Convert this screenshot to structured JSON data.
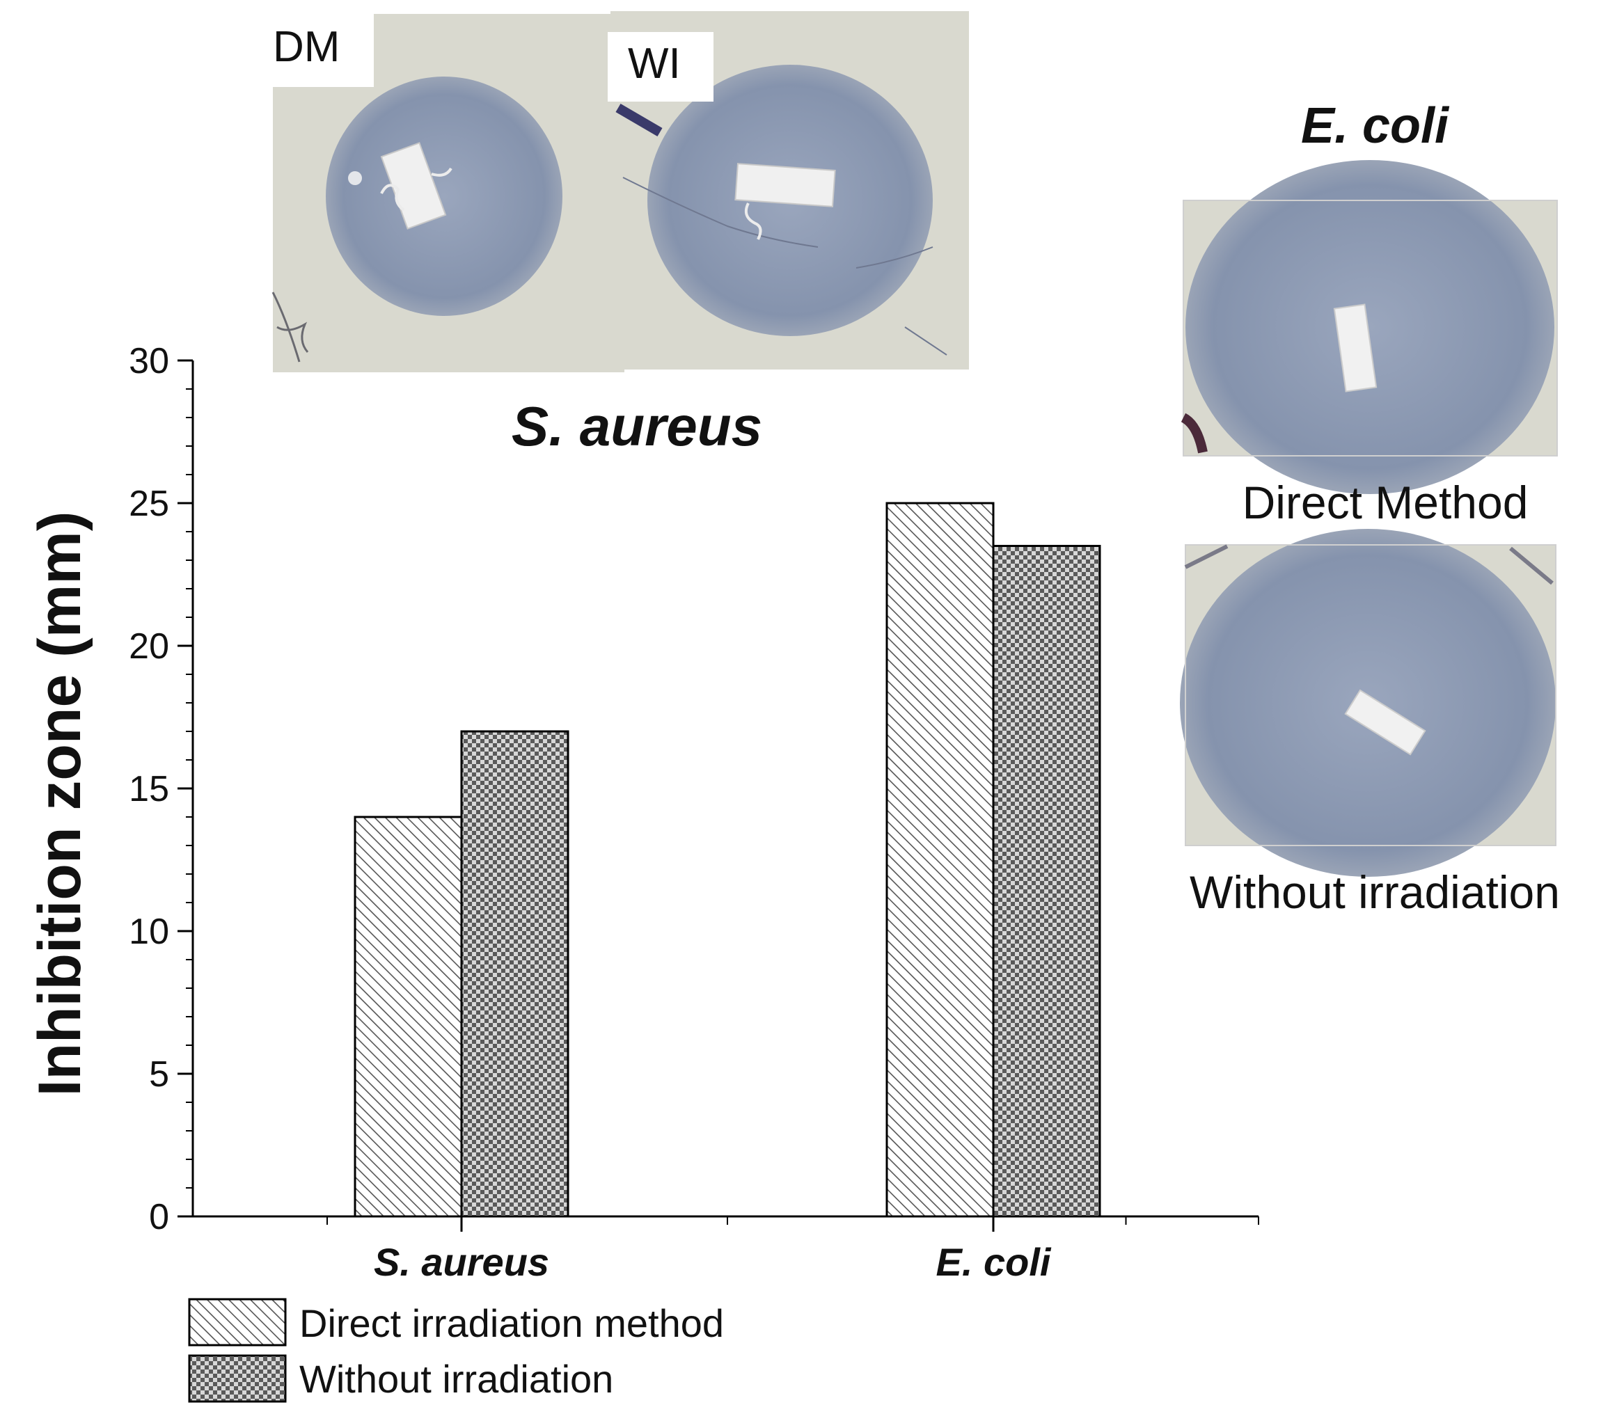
{
  "colors": {
    "axis": "#000000",
    "bar_outline": "#000000",
    "hatch_line": "#555555",
    "checker": "#555555",
    "plate_agar": "#dcdcd4",
    "plate_zone": "#8d9bb3",
    "plate_specimen": "#f2f2f2"
  },
  "photos": {
    "left": [
      {
        "label": "DM",
        "icon": "agar-plate-photo"
      },
      {
        "label": "WI",
        "icon": "agar-plate-photo"
      }
    ],
    "right": {
      "title": "E. coli",
      "panels": [
        {
          "caption": "Direct Method",
          "icon": "agar-plate-photo"
        },
        {
          "caption": "Without irradiation",
          "icon": "agar-plate-photo"
        }
      ]
    }
  },
  "chart_data": {
    "type": "bar",
    "title": "S. aureus",
    "categories": [
      "S. aureus",
      "E. coli"
    ],
    "series": [
      {
        "name": "Direct irradiation method",
        "pattern": "diagonal-hatch",
        "values": [
          14,
          25
        ]
      },
      {
        "name": "Without irradiation",
        "pattern": "checkered",
        "values": [
          17,
          23.5
        ]
      }
    ],
    "xlabel": "",
    "ylabel": "Inhibition zone (mm)",
    "ylim": [
      0,
      30
    ],
    "yticks": [
      0,
      5,
      10,
      15,
      20,
      25,
      30
    ],
    "grid": false,
    "legend_position": "bottom-left"
  }
}
